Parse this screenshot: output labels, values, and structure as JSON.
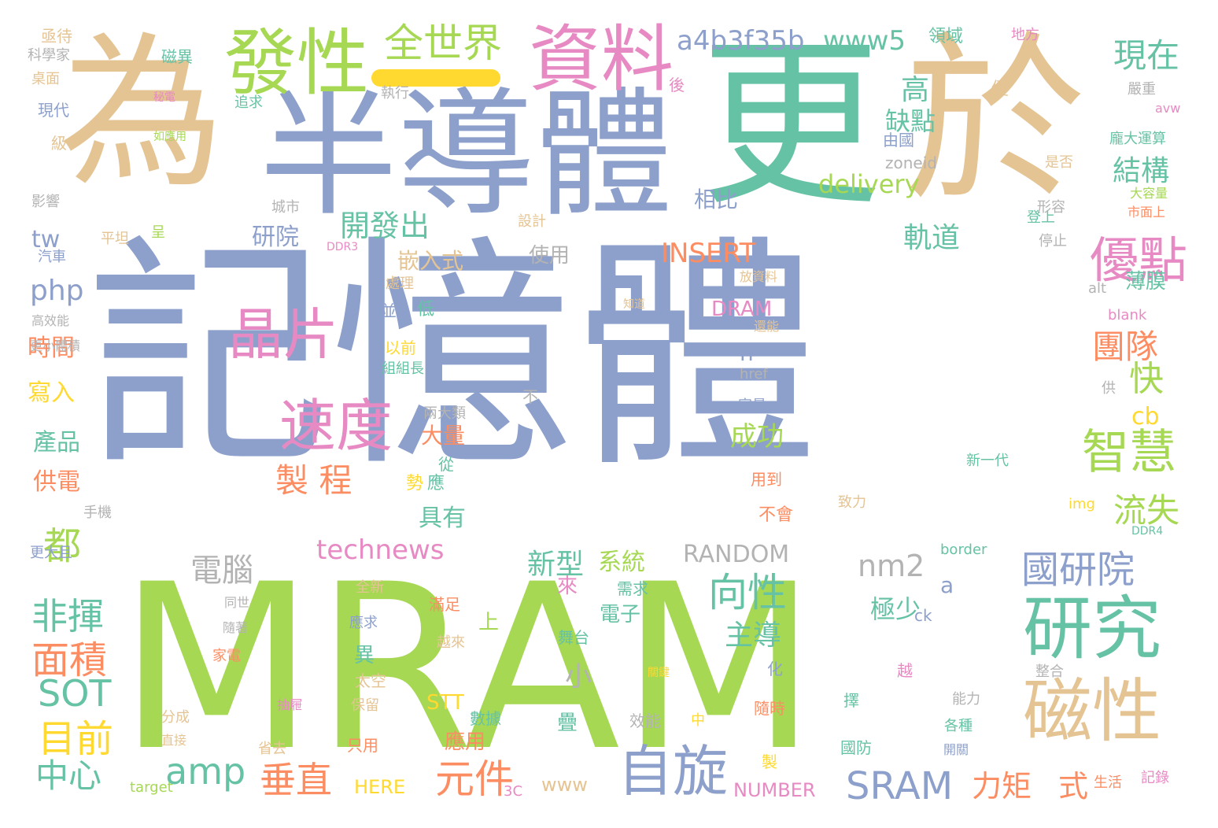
{
  "palette": {
    "green": "#66c2a5",
    "orange": "#fc8d62",
    "blue": "#8da0cb",
    "pink": "#e78ac3",
    "lime": "#a6d854",
    "yellow": "#ffd92f",
    "tan": "#e5c494",
    "gray": "#b3b3b3"
  },
  "words": [
    {
      "text": "記憶體",
      "color": "blue"
    },
    {
      "text": "MRAM",
      "color": "lime"
    },
    {
      "text": "更",
      "color": "green"
    },
    {
      "text": "於",
      "color": "tan"
    },
    {
      "text": "為",
      "color": "tan"
    },
    {
      "text": "半導體",
      "color": "blue"
    },
    {
      "text": "發性",
      "color": "lime"
    },
    {
      "text": "資料",
      "color": "pink"
    },
    {
      "text": "全世界",
      "color": "lime"
    },
    {
      "text": "a4b3f35b",
      "color": "blue"
    },
    {
      "text": "www5",
      "color": "green"
    },
    {
      "text": "領域",
      "color": "green"
    },
    {
      "text": "地方",
      "color": "pink"
    },
    {
      "text": "現在",
      "color": "green"
    },
    {
      "text": "磁性",
      "color": "tan"
    },
    {
      "text": "研究",
      "color": "green"
    },
    {
      "text": "自旋",
      "color": "blue"
    },
    {
      "text": "速度",
      "color": "pink"
    },
    {
      "text": "晶片",
      "color": "pink"
    },
    {
      "text": "優點",
      "color": "pink"
    },
    {
      "text": "智慧",
      "color": "lime"
    },
    {
      "text": "國研院",
      "color": "blue"
    },
    {
      "text": "SRAM",
      "color": "blue"
    },
    {
      "text": "面積",
      "color": "orange"
    },
    {
      "text": "非揮",
      "color": "green"
    },
    {
      "text": "目前",
      "color": "yellow"
    },
    {
      "text": "SOT",
      "color": "green"
    },
    {
      "text": "中心",
      "color": "green"
    },
    {
      "text": "amp",
      "color": "green"
    },
    {
      "text": "垂直",
      "color": "orange"
    },
    {
      "text": "元件",
      "color": "orange"
    },
    {
      "text": "力矩",
      "color": "orange"
    },
    {
      "text": "式",
      "color": "orange"
    },
    {
      "text": "電腦",
      "color": "gray"
    },
    {
      "text": "nm2",
      "color": "gray"
    },
    {
      "text": "向性",
      "color": "green"
    },
    {
      "text": "製 程",
      "color": "orange"
    },
    {
      "text": "成功",
      "color": "lime"
    },
    {
      "text": "INSERT",
      "color": "orange"
    },
    {
      "text": "delivery",
      "color": "lime"
    },
    {
      "text": "開發出",
      "color": "green"
    },
    {
      "text": "研院",
      "color": "blue"
    },
    {
      "text": "軌道",
      "color": "green"
    },
    {
      "text": "結構",
      "color": "green"
    },
    {
      "text": "缺點",
      "color": "green"
    },
    {
      "text": "高",
      "color": "green"
    },
    {
      "text": "相比",
      "color": "blue"
    },
    {
      "text": "團隊",
      "color": "orange"
    },
    {
      "text": "快",
      "color": "lime"
    },
    {
      "text": "流失",
      "color": "lime"
    },
    {
      "text": "cb",
      "color": "yellow"
    },
    {
      "text": "technews",
      "color": "pink"
    },
    {
      "text": "RANDOM",
      "color": "gray"
    },
    {
      "text": "新型",
      "color": "green"
    },
    {
      "text": "系統",
      "color": "lime"
    },
    {
      "text": "主導",
      "color": "green"
    },
    {
      "text": "極少",
      "color": "green"
    },
    {
      "text": "小",
      "color": "gray"
    },
    {
      "text": "n",
      "color": "blue"
    },
    {
      "text": "a",
      "color": "blue"
    },
    {
      "text": "php",
      "color": "blue"
    },
    {
      "text": "tw",
      "color": "blue"
    },
    {
      "text": "都",
      "color": "lime"
    },
    {
      "text": "時間",
      "color": "orange"
    },
    {
      "text": "寫入",
      "color": "yellow"
    },
    {
      "text": "產品",
      "color": "green"
    },
    {
      "text": "供電",
      "color": "orange"
    },
    {
      "text": "具有",
      "color": "green"
    },
    {
      "text": "大量",
      "color": "orange"
    },
    {
      "text": "嵌入式",
      "color": "tan"
    },
    {
      "text": "使用",
      "color": "gray"
    },
    {
      "text": "DRAM",
      "color": "pink"
    },
    {
      "text": "電子",
      "color": "green"
    },
    {
      "text": "STT",
      "color": "yellow"
    },
    {
      "text": "應用",
      "color": "orange"
    },
    {
      "text": "HERE",
      "color": "yellow"
    },
    {
      "text": "www",
      "color": "tan"
    },
    {
      "text": "NUMBER",
      "color": "pink"
    },
    {
      "text": "薄膜",
      "color": "green"
    },
    {
      "text": "亟待",
      "color": "tan"
    },
    {
      "text": "磁異",
      "color": "green"
    },
    {
      "text": "科學家",
      "color": "gray"
    },
    {
      "text": "桌面",
      "color": "tan"
    },
    {
      "text": "現代",
      "color": "blue"
    },
    {
      "text": "級",
      "color": "tan"
    },
    {
      "text": "影響",
      "color": "gray"
    },
    {
      "text": "汽車",
      "color": "blue"
    },
    {
      "text": "高效能",
      "color": "gray"
    },
    {
      "text": "更小體積",
      "color": "gray"
    },
    {
      "text": "手機",
      "color": "gray"
    },
    {
      "text": "更大且",
      "color": "blue"
    },
    {
      "text": "全新",
      "color": "tan"
    },
    {
      "text": "同世",
      "color": "gray"
    },
    {
      "text": "隨著",
      "color": "gray"
    },
    {
      "text": "家電",
      "color": "orange"
    },
    {
      "text": "分成",
      "color": "tan"
    },
    {
      "text": "直接",
      "color": "tan"
    },
    {
      "text": "target",
      "color": "lime"
    },
    {
      "text": "3C",
      "color": "pink"
    },
    {
      "text": "追求",
      "color": "green"
    },
    {
      "text": "執行",
      "color": "gray"
    },
    {
      "text": "後",
      "color": "pink"
    },
    {
      "text": "城市",
      "color": "gray"
    },
    {
      "text": "平坦",
      "color": "tan"
    },
    {
      "text": "呈",
      "color": "lime"
    },
    {
      "text": "設計",
      "color": "tan"
    },
    {
      "text": "處理",
      "color": "tan"
    },
    {
      "text": "並",
      "color": "blue"
    },
    {
      "text": "低",
      "color": "green"
    },
    {
      "text": "以前",
      "color": "yellow"
    },
    {
      "text": "組組長",
      "color": "green"
    },
    {
      "text": "兩大類",
      "color": "gray"
    },
    {
      "text": "從",
      "color": "green"
    },
    {
      "text": "勢",
      "color": "yellow"
    },
    {
      "text": "應",
      "color": "green"
    },
    {
      "text": "不",
      "color": "gray"
    },
    {
      "text": "知道",
      "color": "tan"
    },
    {
      "text": "放資料",
      "color": "tan"
    },
    {
      "text": "還能",
      "color": "tan"
    },
    {
      "text": "href",
      "color": "gray"
    },
    {
      "text": "容量",
      "color": "blue"
    },
    {
      "text": "用到",
      "color": "orange"
    },
    {
      "text": "不會",
      "color": "orange"
    },
    {
      "text": "來",
      "color": "pink"
    },
    {
      "text": "需求",
      "color": "green"
    },
    {
      "text": "上",
      "color": "lime"
    },
    {
      "text": "舞台",
      "color": "green"
    },
    {
      "text": "滿足",
      "color": "orange"
    },
    {
      "text": "越來",
      "color": "tan"
    },
    {
      "text": "應求",
      "color": "blue"
    },
    {
      "text": "異",
      "color": "green"
    },
    {
      "text": "太空",
      "color": "tan"
    },
    {
      "text": "保留",
      "color": "tan"
    },
    {
      "text": "抽屜",
      "color": "pink"
    },
    {
      "text": "省去",
      "color": "tan"
    },
    {
      "text": "只用",
      "color": "orange"
    },
    {
      "text": "數據",
      "color": "green"
    },
    {
      "text": "疊",
      "color": "green"
    },
    {
      "text": "效能",
      "color": "gray"
    },
    {
      "text": "中",
      "color": "yellow"
    },
    {
      "text": "製",
      "color": "yellow"
    },
    {
      "text": "國防",
      "color": "green"
    },
    {
      "text": "擇",
      "color": "green"
    },
    {
      "text": "隨時",
      "color": "orange"
    },
    {
      "text": "化",
      "color": "blue"
    },
    {
      "text": "ck",
      "color": "blue"
    },
    {
      "text": "越",
      "color": "pink"
    },
    {
      "text": "關鍵",
      "color": "yellow"
    },
    {
      "text": "能力",
      "color": "gray"
    },
    {
      "text": "各種",
      "color": "green"
    },
    {
      "text": "開關",
      "color": "blue"
    },
    {
      "text": "生活",
      "color": "orange"
    },
    {
      "text": "記錄",
      "color": "pink"
    },
    {
      "text": "整合",
      "color": "gray"
    },
    {
      "text": "img",
      "color": "yellow"
    },
    {
      "text": "border",
      "color": "green"
    },
    {
      "text": "DDR4",
      "color": "green"
    },
    {
      "text": "致力",
      "color": "tan"
    },
    {
      "text": "新一代",
      "color": "green"
    },
    {
      "text": "供",
      "color": "gray"
    },
    {
      "text": "blank",
      "color": "pink"
    },
    {
      "text": "alt",
      "color": "gray"
    },
    {
      "text": "停止",
      "color": "gray"
    },
    {
      "text": "登上",
      "color": "green"
    },
    {
      "text": "形容",
      "color": "gray"
    },
    {
      "text": "市面上",
      "color": "orange"
    },
    {
      "text": "大容量",
      "color": "lime"
    },
    {
      "text": "是否",
      "color": "tan"
    },
    {
      "text": "zoneid",
      "color": "gray"
    },
    {
      "text": "由國",
      "color": "blue"
    },
    {
      "text": "龐大運算",
      "color": "green"
    },
    {
      "text": "嚴重",
      "color": "gray"
    },
    {
      "text": "優",
      "color": "tan"
    },
    {
      "text": "avw",
      "color": "pink"
    },
    {
      "text": "DDR3",
      "color": "pink"
    },
    {
      "text": "秘電",
      "color": "pink"
    },
    {
      "text": "如應用",
      "color": "lime"
    }
  ]
}
